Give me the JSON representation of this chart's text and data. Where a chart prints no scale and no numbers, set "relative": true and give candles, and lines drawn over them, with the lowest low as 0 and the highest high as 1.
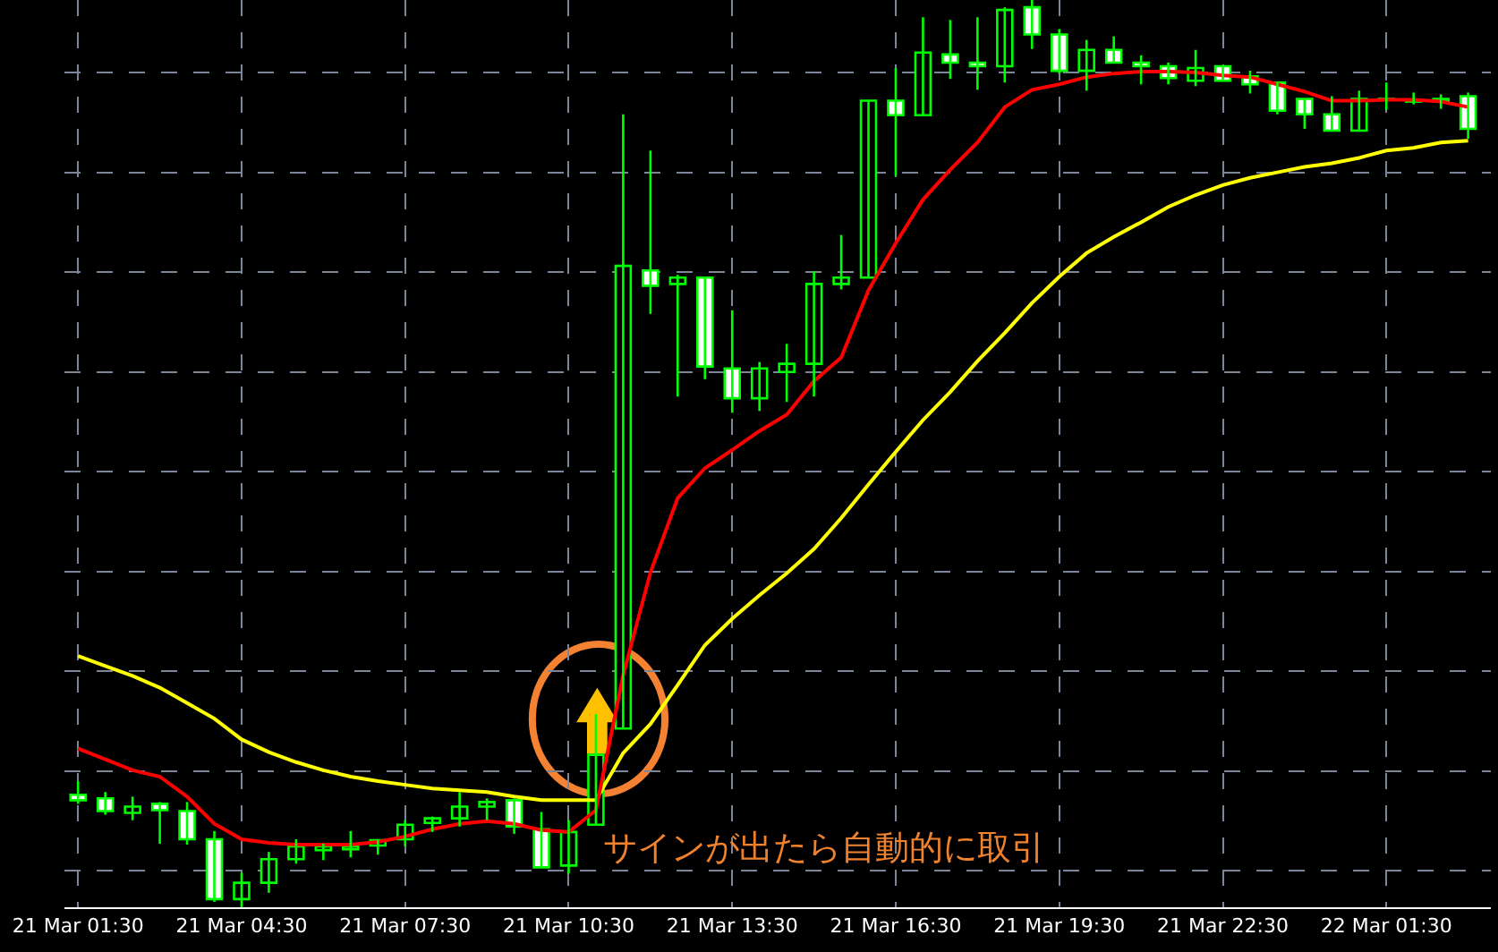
{
  "chart_data": {
    "type": "candlestick",
    "relative": true,
    "grid": true,
    "tick_labels": "x",
    "annotations": [
      "サインが出たら自動的に取引"
    ],
    "x": [
      "--03-21T01:30",
      "--03-21T02:00",
      "--03-21T02:30",
      "--03-21T03:00",
      "--03-21T03:30",
      "--03-21T04:00",
      "--03-21T04:30",
      "--03-21T05:00",
      "--03-21T05:30",
      "--03-21T06:00",
      "--03-21T06:30",
      "--03-21T07:00",
      "--03-21T07:30",
      "--03-21T08:00",
      "--03-21T08:30",
      "--03-21T09:00",
      "--03-21T09:30",
      "--03-21T10:00",
      "--03-21T10:30",
      "--03-21T11:00",
      "--03-21T11:30",
      "--03-21T12:00",
      "--03-21T12:30",
      "--03-21T13:00",
      "--03-21T13:30",
      "--03-21T14:00",
      "--03-21T14:30",
      "--03-21T15:00",
      "--03-21T15:30",
      "--03-21T16:00",
      "--03-21T16:30",
      "--03-21T17:00",
      "--03-21T17:30",
      "--03-21T18:00",
      "--03-21T18:30",
      "--03-21T19:00",
      "--03-21T19:30",
      "--03-21T20:00",
      "--03-21T20:30",
      "--03-21T21:00",
      "--03-21T21:30",
      "--03-21T22:00",
      "--03-21T22:30",
      "--03-21T23:00",
      "--03-21T23:30",
      "--03-22T00:00",
      "--03-22T00:30",
      "--03-22T01:00",
      "--03-22T01:30",
      "--03-22T02:00",
      "--03-22T02:30",
      "--03-22T03:00"
    ],
    "xlim": [
      "--03-21T01:15",
      "--03-22T03:25"
    ],
    "xticks": [
      {
        "value": "--03-21T01:30",
        "label": "21 Mar 01:30"
      },
      {
        "value": "--03-21T04:30",
        "label": "21 Mar 04:30"
      },
      {
        "value": "--03-21T07:30",
        "label": "21 Mar 07:30"
      },
      {
        "value": "--03-21T10:30",
        "label": "21 Mar 10:30"
      },
      {
        "value": "--03-21T13:30",
        "label": "21 Mar 13:30"
      },
      {
        "value": "--03-21T16:30",
        "label": "21 Mar 16:30"
      },
      {
        "value": "--03-21T19:30",
        "label": "21 Mar 19:30"
      },
      {
        "value": "--03-21T22:30",
        "label": "21 Mar 22:30"
      },
      {
        "value": "--03-22T01:30",
        "label": "22 Mar 01:30"
      }
    ],
    "series": [
      {
        "type": "line",
        "color": "#ffff00",
        "values": [
          0.277,
          0.266,
          0.255,
          0.242,
          0.225,
          0.208,
          0.185,
          0.171,
          0.16,
          0.151,
          0.144,
          0.139,
          0.135,
          0.131,
          0.129,
          0.127,
          0.122,
          0.118,
          0.118,
          0.118,
          0.17,
          0.202,
          0.245,
          0.289,
          0.318,
          0.344,
          0.368,
          0.395,
          0.429,
          0.466,
          0.502,
          0.537,
          0.568,
          0.602,
          0.633,
          0.666,
          0.695,
          0.721,
          0.739,
          0.755,
          0.772,
          0.785,
          0.796,
          0.804,
          0.81,
          0.816,
          0.82,
          0.826,
          0.834,
          0.837,
          0.843,
          0.845
        ]
      },
      {
        "type": "line",
        "color": "#ff0000",
        "values": [
          0.175,
          0.163,
          0.151,
          0.144,
          0.122,
          0.092,
          0.075,
          0.071,
          0.069,
          0.069,
          0.069,
          0.072,
          0.078,
          0.086,
          0.092,
          0.095,
          0.092,
          0.085,
          0.083,
          0.107,
          0.256,
          0.369,
          0.451,
          0.484,
          0.504,
          0.525,
          0.543,
          0.58,
          0.606,
          0.68,
          0.732,
          0.78,
          0.813,
          0.843,
          0.882,
          0.901,
          0.907,
          0.915,
          0.919,
          0.921,
          0.921,
          0.92,
          0.917,
          0.915,
          0.907,
          0.899,
          0.889,
          0.889,
          0.89,
          0.89,
          0.888,
          0.882
        ]
      },
      {
        "type": "candlestick",
        "color": "#00ff00",
        "ohlc": [
          [
            0.124,
            0.139,
            0.114,
            0.118
          ],
          [
            0.12,
            0.127,
            0.102,
            0.106
          ],
          [
            0.104,
            0.122,
            0.096,
            0.111
          ],
          [
            0.114,
            0.116,
            0.07,
            0.107
          ],
          [
            0.106,
            0.116,
            0.069,
            0.075
          ],
          [
            0.075,
            0.084,
            0.006,
            0.009
          ],
          [
            0.009,
            0.038,
            0,
            0.027
          ],
          [
            0.027,
            0.061,
            0.016,
            0.053
          ],
          [
            0.053,
            0.075,
            0.048,
            0.067
          ],
          [
            0.063,
            0.07,
            0.052,
            0.067
          ],
          [
            0.064,
            0.084,
            0.055,
            0.067
          ],
          [
            0.068,
            0.075,
            0.058,
            0.074
          ],
          [
            0.075,
            0.096,
            0.067,
            0.091
          ],
          [
            0.093,
            0.1,
            0.083,
            0.098
          ],
          [
            0.098,
            0.127,
            0.089,
            0.111
          ],
          [
            0.111,
            0.12,
            0.096,
            0.116
          ],
          [
            0.118,
            0.12,
            0.081,
            0.089
          ],
          [
            0.086,
            0.105,
            0.044,
            0.044
          ],
          [
            0.046,
            0.096,
            0.037,
            0.083
          ],
          [
            0.091,
            0.213,
            0.091,
            0.168
          ],
          [
            0.197,
            0.874,
            0.197,
            0.707
          ],
          [
            0.702,
            0.834,
            0.654,
            0.685
          ],
          [
            0.687,
            0.697,
            0.563,
            0.694
          ],
          [
            0.694,
            0.694,
            0.582,
            0.596
          ],
          [
            0.594,
            0.658,
            0.545,
            0.561
          ],
          [
            0.561,
            0.601,
            0.547,
            0.594
          ],
          [
            0.59,
            0.621,
            0.557,
            0.599
          ],
          [
            0.599,
            0.701,
            0.563,
            0.687
          ],
          [
            0.687,
            0.741,
            0.681,
            0.694
          ],
          [
            0.694,
            0.889,
            0.694,
            0.889
          ],
          [
            0.889,
            0.925,
            0.806,
            0.873
          ],
          [
            0.873,
            0.981,
            0.873,
            0.942
          ],
          [
            0.94,
            0.978,
            0.913,
            0.931
          ],
          [
            0.931,
            0.981,
            0.901,
            0.927
          ],
          [
            0.927,
            0.992,
            0.909,
            0.989
          ],
          [
            0.992,
            1,
            0.946,
            0.962
          ],
          [
            0.962,
            0.968,
            0.919,
            0.922
          ],
          [
            0.922,
            0.956,
            0.9,
            0.945
          ],
          [
            0.945,
            0.96,
            0.931,
            0.931
          ],
          [
            0.931,
            0.939,
            0.907,
            0.927
          ],
          [
            0.927,
            0.931,
            0.907,
            0.914
          ],
          [
            0.911,
            0.945,
            0.905,
            0.925
          ],
          [
            0.927,
            0.927,
            0.911,
            0.911
          ],
          [
            0.916,
            0.922,
            0.897,
            0.907
          ],
          [
            0.909,
            0.909,
            0.874,
            0.878
          ],
          [
            0.891,
            0.891,
            0.858,
            0.874
          ],
          [
            0.874,
            0.894,
            0.856,
            0.856
          ],
          [
            0.856,
            0.9,
            0.856,
            0.891
          ],
          [
            0.89,
            0.909,
            0.879,
            0.891
          ],
          [
            0.888,
            0.898,
            0.885,
            0.89
          ],
          [
            0.891,
            0.896,
            0.88,
            0.889
          ],
          [
            0.894,
            0.898,
            0.847,
            0.858
          ]
        ]
      }
    ]
  }
}
